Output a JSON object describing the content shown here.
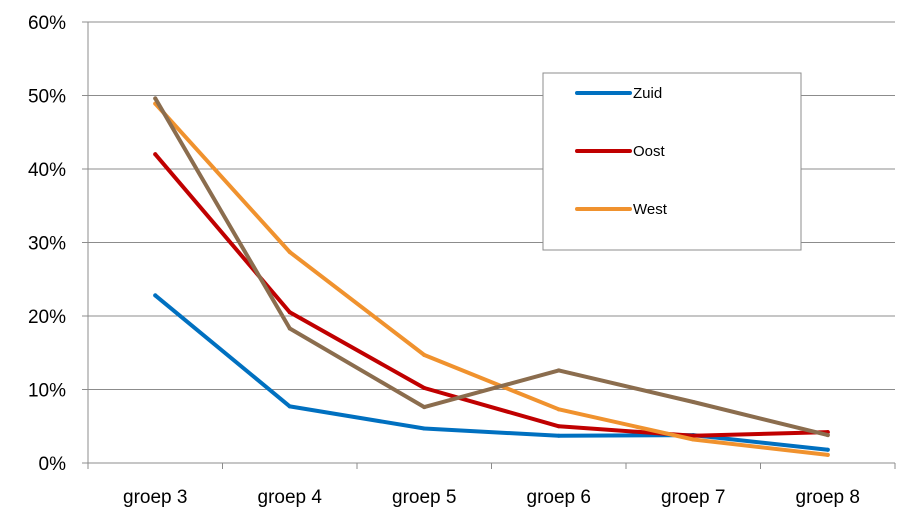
{
  "chart_data": {
    "type": "line",
    "title": "",
    "xlabel": "",
    "ylabel": "",
    "categories": [
      "groep 3",
      "groep 4",
      "groep 5",
      "groep 6",
      "groep 7",
      "groep 8"
    ],
    "ylim": [
      0,
      60
    ],
    "yticks": [
      0,
      10,
      20,
      30,
      40,
      50,
      60
    ],
    "ytick_labels": [
      "0%",
      "10%",
      "20%",
      "30%",
      "40%",
      "50%",
      "60%"
    ],
    "grid": "horizontal",
    "legend_position": "top-right",
    "series": [
      {
        "name": "Zuid",
        "color": "#0070C0",
        "values": [
          22.8,
          7.7,
          4.7,
          3.7,
          3.8,
          1.8
        ],
        "in_legend": true
      },
      {
        "name": "Oost",
        "color": "#C00000",
        "values": [
          42.0,
          20.5,
          10.2,
          5.0,
          3.7,
          4.2
        ],
        "in_legend": true
      },
      {
        "name": "West",
        "color": "#F0922E",
        "values": [
          48.9,
          28.7,
          14.7,
          7.3,
          3.2,
          1.1
        ],
        "in_legend": true
      },
      {
        "color": "#8B6D4E",
        "values": [
          49.6,
          18.3,
          7.6,
          12.6,
          8.3,
          3.8
        ],
        "in_legend": false
      }
    ]
  }
}
